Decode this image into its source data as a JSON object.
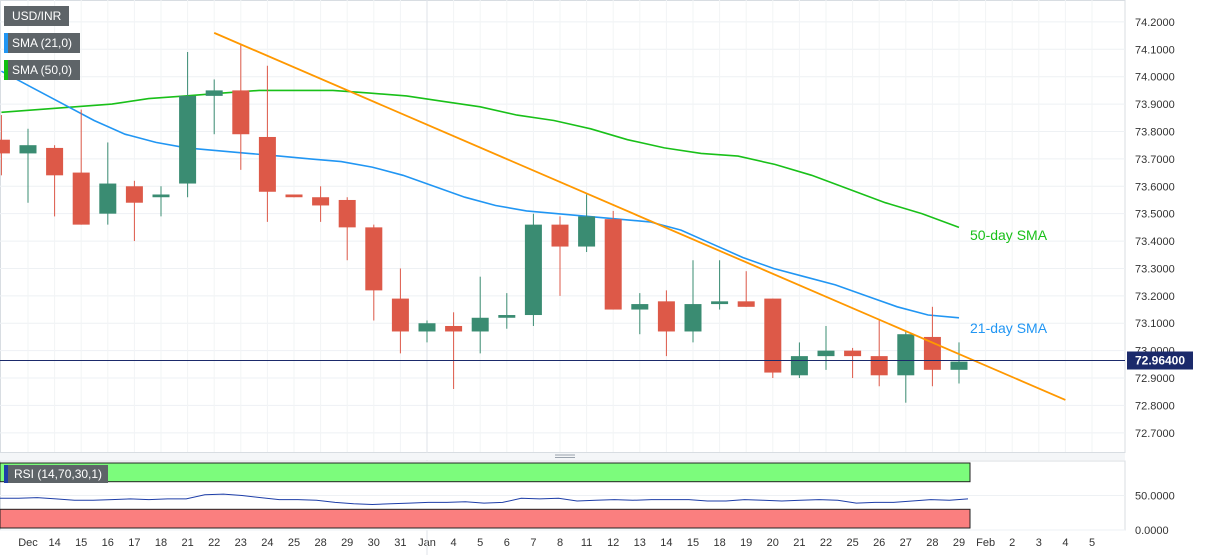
{
  "legend": {
    "symbol": "USD/INR",
    "sma21": "SMA (21,0)",
    "sma50": "SMA (50,0)",
    "rsi": "RSI (14,70,30,1)"
  },
  "colors": {
    "bull": "#3a8c72",
    "bear": "#dd5948",
    "sma21": "#2196f3",
    "sma50": "#19c019",
    "trendline": "#ff9800",
    "rsi_line": "#1e3ea8",
    "overbought_zone": "#7cfc7c",
    "oversold_zone": "#fa7f7f"
  },
  "chart_data": [
    {
      "type": "candlestick",
      "title": "USD/INR",
      "x_ticks": [
        "Dec",
        "14",
        "15",
        "16",
        "17",
        "18",
        "21",
        "22",
        "23",
        "24",
        "25",
        "28",
        "29",
        "30",
        "31",
        "Jan",
        "4",
        "5",
        "6",
        "7",
        "8",
        "11",
        "12",
        "13",
        "14",
        "15",
        "18",
        "19",
        "20",
        "21",
        "22",
        "25",
        "26",
        "27",
        "28",
        "29",
        "Feb",
        "2",
        "3",
        "4",
        "5"
      ],
      "y_ticks": [
        "74.2000",
        "74.1000",
        "74.0000",
        "73.9000",
        "73.8000",
        "73.7000",
        "73.6000",
        "73.5000",
        "73.4000",
        "73.3000",
        "73.2000",
        "73.1000",
        "73.0000",
        "72.9000",
        "72.8000",
        "72.7000"
      ],
      "ylim": [
        72.63,
        74.28
      ],
      "current_price": "72.96400",
      "candles": [
        {
          "date": "11",
          "o": 73.77,
          "h": 73.86,
          "l": 73.64,
          "c": 73.72
        },
        {
          "date": "Dec",
          "o": 73.72,
          "h": 73.81,
          "l": 73.54,
          "c": 73.75
        },
        {
          "date": "14",
          "o": 73.74,
          "h": 73.75,
          "l": 73.49,
          "c": 73.64
        },
        {
          "date": "15",
          "o": 73.65,
          "h": 73.88,
          "l": 73.46,
          "c": 73.46
        },
        {
          "date": "16",
          "o": 73.5,
          "h": 73.76,
          "l": 73.46,
          "c": 73.61
        },
        {
          "date": "17",
          "o": 73.6,
          "h": 73.62,
          "l": 73.4,
          "c": 73.54
        },
        {
          "date": "18",
          "o": 73.56,
          "h": 73.6,
          "l": 73.49,
          "c": 73.57
        },
        {
          "date": "21",
          "o": 73.61,
          "h": 74.09,
          "l": 73.56,
          "c": 73.93
        },
        {
          "date": "22",
          "o": 73.93,
          "h": 73.99,
          "l": 73.79,
          "c": 73.95
        },
        {
          "date": "23",
          "o": 73.95,
          "h": 74.12,
          "l": 73.66,
          "c": 73.79
        },
        {
          "date": "24",
          "o": 73.78,
          "h": 74.04,
          "l": 73.47,
          "c": 73.58
        },
        {
          "date": "25",
          "o": 73.57,
          "h": 73.57,
          "l": 73.56,
          "c": 73.56
        },
        {
          "date": "28",
          "o": 73.56,
          "h": 73.6,
          "l": 73.47,
          "c": 73.53
        },
        {
          "date": "29",
          "o": 73.55,
          "h": 73.56,
          "l": 73.33,
          "c": 73.45
        },
        {
          "date": "30",
          "o": 73.45,
          "h": 73.46,
          "l": 73.11,
          "c": 73.22
        },
        {
          "date": "31",
          "o": 73.19,
          "h": 73.3,
          "l": 72.99,
          "c": 73.07
        },
        {
          "date": "Jan",
          "o": 73.07,
          "h": 73.11,
          "l": 73.03,
          "c": 73.1
        },
        {
          "date": "4",
          "o": 73.09,
          "h": 73.14,
          "l": 72.86,
          "c": 73.07
        },
        {
          "date": "5",
          "o": 73.07,
          "h": 73.27,
          "l": 72.99,
          "c": 73.12
        },
        {
          "date": "6",
          "o": 73.12,
          "h": 73.21,
          "l": 73.08,
          "c": 73.13
        },
        {
          "date": "7",
          "o": 73.13,
          "h": 73.5,
          "l": 73.09,
          "c": 73.46
        },
        {
          "date": "8",
          "o": 73.46,
          "h": 73.49,
          "l": 73.2,
          "c": 73.38
        },
        {
          "date": "11",
          "o": 73.38,
          "h": 73.57,
          "l": 73.36,
          "c": 73.49
        },
        {
          "date": "12",
          "o": 73.48,
          "h": 73.51,
          "l": 73.15,
          "c": 73.15
        },
        {
          "date": "13",
          "o": 73.15,
          "h": 73.21,
          "l": 73.06,
          "c": 73.17
        },
        {
          "date": "14",
          "o": 73.18,
          "h": 73.22,
          "l": 72.98,
          "c": 73.07
        },
        {
          "date": "15",
          "o": 73.07,
          "h": 73.33,
          "l": 73.03,
          "c": 73.17
        },
        {
          "date": "18",
          "o": 73.17,
          "h": 73.33,
          "l": 73.15,
          "c": 73.18
        },
        {
          "date": "19",
          "o": 73.18,
          "h": 73.29,
          "l": 73.16,
          "c": 73.16
        },
        {
          "date": "20",
          "o": 73.19,
          "h": 73.19,
          "l": 72.9,
          "c": 72.92
        },
        {
          "date": "21",
          "o": 72.91,
          "h": 73.03,
          "l": 72.9,
          "c": 72.98
        },
        {
          "date": "22",
          "o": 72.98,
          "h": 73.09,
          "l": 72.93,
          "c": 73.0
        },
        {
          "date": "25",
          "o": 73.0,
          "h": 73.01,
          "l": 72.9,
          "c": 72.98
        },
        {
          "date": "26",
          "o": 72.98,
          "h": 73.11,
          "l": 72.87,
          "c": 72.91
        },
        {
          "date": "27",
          "o": 72.91,
          "h": 73.07,
          "l": 72.81,
          "c": 73.06
        },
        {
          "date": "28",
          "o": 73.05,
          "h": 73.16,
          "l": 72.87,
          "c": 72.93
        },
        {
          "date": "29",
          "o": 72.93,
          "h": 73.03,
          "l": 72.88,
          "c": 72.96
        }
      ],
      "sma21": [
        74.02,
        73.96,
        73.9,
        73.84,
        73.79,
        73.76,
        73.74,
        73.73,
        73.72,
        73.71,
        73.7,
        73.69,
        73.67,
        73.64,
        73.6,
        73.56,
        73.53,
        73.51,
        73.5,
        73.49,
        73.48,
        73.47,
        73.44,
        73.39,
        73.34,
        73.3,
        73.27,
        73.24,
        73.2,
        73.16,
        73.13,
        73.12
      ],
      "sma50": [
        73.87,
        73.88,
        73.89,
        73.9,
        73.92,
        73.93,
        73.94,
        73.95,
        73.95,
        73.95,
        73.94,
        73.93,
        73.91,
        73.89,
        73.86,
        73.84,
        73.81,
        73.77,
        73.74,
        73.72,
        73.71,
        73.68,
        73.64,
        73.59,
        73.54,
        73.5,
        73.45
      ],
      "trendline": {
        "start": {
          "date": "22 Dec",
          "value": 74.16
        },
        "end": {
          "date": "4 Feb",
          "value": 72.82
        }
      }
    },
    {
      "type": "line",
      "title": "RSI (14,70,30,1)",
      "y_ticks": [
        "50.0000",
        "0.0000"
      ],
      "ylim": [
        0,
        100
      ],
      "zones": {
        "overbought": [
          70,
          100
        ],
        "oversold": [
          0,
          30
        ]
      },
      "values": [
        46,
        46,
        47,
        45,
        43,
        43,
        44,
        45,
        44,
        45,
        45,
        51,
        52,
        50,
        47,
        44,
        44,
        43,
        40,
        38,
        37,
        38,
        39,
        40,
        40,
        41,
        39,
        40,
        46,
        45,
        46,
        42,
        43,
        44,
        43,
        44,
        44,
        44,
        42,
        42,
        44,
        43,
        42,
        43,
        44,
        43,
        39,
        40,
        40,
        42,
        44,
        43,
        45
      ]
    }
  ],
  "annotations": {
    "sma21_label": "21-day SMA",
    "sma50_label": "50-day SMA"
  }
}
